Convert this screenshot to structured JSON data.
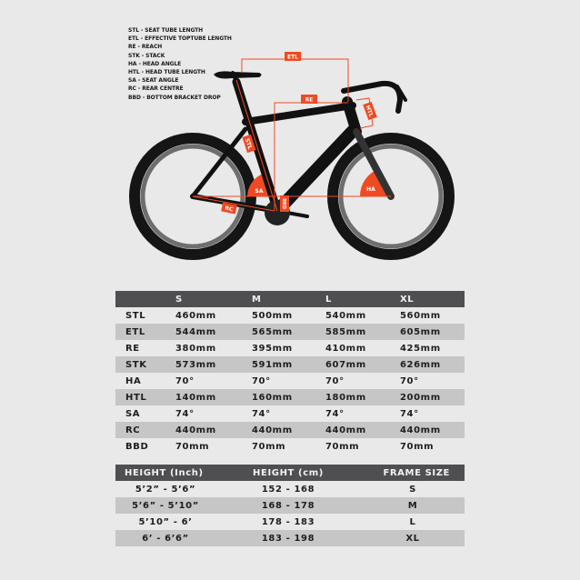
{
  "legend": [
    "STL - SEAT TUBE LENGTH",
    "ETL - EFFECTIVE TOPTUBE LENGTH",
    "RE - REACH",
    "STK - STACK",
    "HA - HEAD ANGLE",
    "HTL - HEAD TUBE LENGTH",
    "SA - SEAT ANGLE",
    "RC - REAR CENTRE",
    "BBD - BOTTOM BRACKET DROP"
  ],
  "diagram": {
    "labels": {
      "etl": "ETL",
      "re": "RE",
      "htl": "HTL",
      "stl": "STL",
      "sa": "SA",
      "ha": "HA",
      "rc": "RC",
      "bbd": "BBD"
    },
    "colors": {
      "accent": "#f04a23",
      "frame": "#111111",
      "tyre": "#1a1a1a",
      "rim": "#6e6e6e"
    }
  },
  "geometry": {
    "headers": [
      "",
      "S",
      "M",
      "L",
      "XL"
    ],
    "rows": [
      [
        "STL",
        "460mm",
        "500mm",
        "540mm",
        "560mm"
      ],
      [
        "ETL",
        "544mm",
        "565mm",
        "585mm",
        "605mm"
      ],
      [
        "RE",
        "380mm",
        "395mm",
        "410mm",
        "425mm"
      ],
      [
        "STK",
        "573mm",
        "591mm",
        "607mm",
        "626mm"
      ],
      [
        "HA",
        "70°",
        "70°",
        "70°",
        "70°"
      ],
      [
        "HTL",
        "140mm",
        "160mm",
        "180mm",
        "200mm"
      ],
      [
        "SA",
        "74°",
        "74°",
        "74°",
        "74°"
      ],
      [
        "RC",
        "440mm",
        "440mm",
        "440mm",
        "440mm"
      ],
      [
        "BBD",
        "70mm",
        "70mm",
        "70mm",
        "70mm"
      ]
    ]
  },
  "sizing": {
    "headers": [
      "HEIGHT (Inch)",
      "HEIGHT (cm)",
      "FRAME SIZE"
    ],
    "rows": [
      [
        "5’2” - 5’6”",
        "152 - 168",
        "S"
      ],
      [
        "5’6” - 5’10”",
        "168 - 178",
        "M"
      ],
      [
        "5’10” - 6’",
        "178 - 183",
        "L"
      ],
      [
        "6’ - 6’6”",
        "183 - 198",
        "XL"
      ]
    ]
  },
  "colors": {
    "background": "#e9e9e9",
    "header": "#4f4f51",
    "alt_row": "#c6c6c6"
  }
}
